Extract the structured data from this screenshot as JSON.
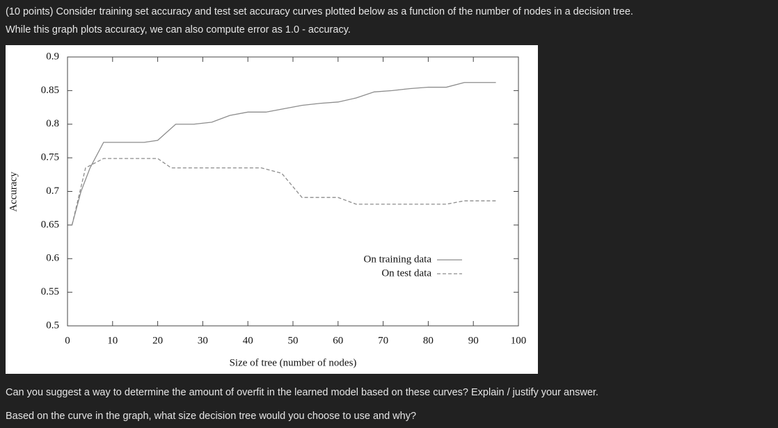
{
  "question": {
    "lines": [
      "(10 points) Consider training set accuracy and test set accuracy curves plotted below as a function of the number of nodes in a decision tree.",
      "While this graph plots accuracy, we can also compute error as 1.0 - accuracy."
    ]
  },
  "chart_data": {
    "type": "line",
    "x_label": "Size of tree (number of nodes)",
    "y_label": "Accuracy",
    "xlim": [
      0,
      100
    ],
    "xticks": [
      0,
      10,
      20,
      30,
      40,
      50,
      60,
      70,
      80,
      90,
      100
    ],
    "ylim": [
      0.5,
      0.9
    ],
    "yticks": [
      0.5,
      0.55,
      0.6,
      0.65,
      0.7,
      0.75,
      0.8,
      0.85,
      0.9
    ],
    "series": [
      {
        "name": "On training data",
        "color": "#8c8c8c",
        "line_style": "solid",
        "x": [
          1,
          3,
          5,
          8,
          17,
          20,
          24,
          28,
          32,
          36,
          40,
          44,
          48,
          52,
          56,
          60,
          64,
          68,
          72,
          76,
          80,
          84,
          88,
          95
        ],
        "values": [
          0.65,
          0.7,
          0.735,
          0.773,
          0.773,
          0.776,
          0.8,
          0.8,
          0.803,
          0.813,
          0.818,
          0.818,
          0.823,
          0.828,
          0.831,
          0.833,
          0.839,
          0.848,
          0.85,
          0.853,
          0.855,
          0.855,
          0.862,
          0.862
        ]
      },
      {
        "name": "On test data",
        "color": "#8c8c8c",
        "line_style": "dashed",
        "x": [
          1,
          4,
          8,
          20,
          23,
          43,
          47.5,
          52,
          60,
          64,
          84,
          88,
          95
        ],
        "values": [
          0.65,
          0.735,
          0.749,
          0.749,
          0.735,
          0.735,
          0.727,
          0.691,
          0.691,
          0.681,
          0.681,
          0.686,
          0.686
        ]
      }
    ]
  },
  "followups": [
    "Can you suggest a way to determine the amount of overfit in the learned model based on these curves? Explain / justify your answer.",
    "Based on the curve in the graph, what size decision tree would you choose to use and why?"
  ]
}
